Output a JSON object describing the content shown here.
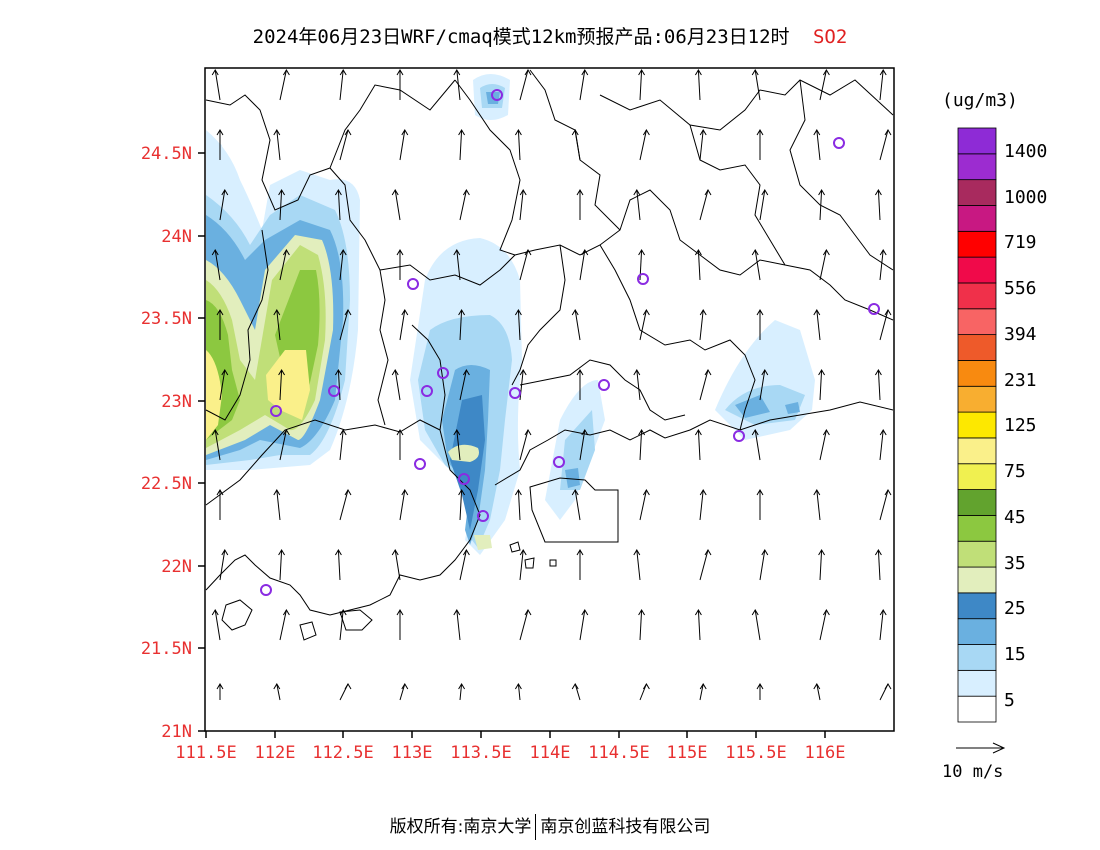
{
  "title": {
    "main": "2024年06月23日WRF/cmaq模式12km预报产品:06月23日12时",
    "species": "SO2"
  },
  "map": {
    "lon_labels": [
      "111.5E",
      "112E",
      "112.5E",
      "113E",
      "113.5E",
      "114E",
      "114.5E",
      "115E",
      "115.5E",
      "116E"
    ],
    "lat_labels": [
      "24.5N",
      "24N",
      "23.5N",
      "23N",
      "22.5N",
      "22N",
      "21.5N",
      "21N"
    ]
  },
  "colorbar": {
    "units": "(ug/m3)",
    "labels": [
      "1400",
      "1000",
      "719",
      "556",
      "394",
      "231",
      "125",
      "75",
      "45",
      "35",
      "25",
      "15",
      "5"
    ],
    "colors": [
      "#ffffff",
      "#d8efff",
      "#a8d8f4",
      "#6ab0e0",
      "#3e88c6",
      "#e2eebd",
      "#c0df78",
      "#8cc840",
      "#62a32e",
      "#f0f050",
      "#faf08a",
      "#fde800",
      "#f8ae30",
      "#f88a10",
      "#ee5a2a",
      "#f86464",
      "#f0304a",
      "#f00a4a",
      "#ff0000",
      "#c81882",
      "#a82a5e",
      "#9c2cd0",
      "#8e2bd6"
    ]
  },
  "reference_vector": "10 m/s",
  "footer": {
    "left": "版权所有:南京大学",
    "right": "南京创蓝科技有限公司"
  },
  "style": {
    "axis_label_color": "#e83030",
    "station_marker_color": "#8a2be2"
  }
}
